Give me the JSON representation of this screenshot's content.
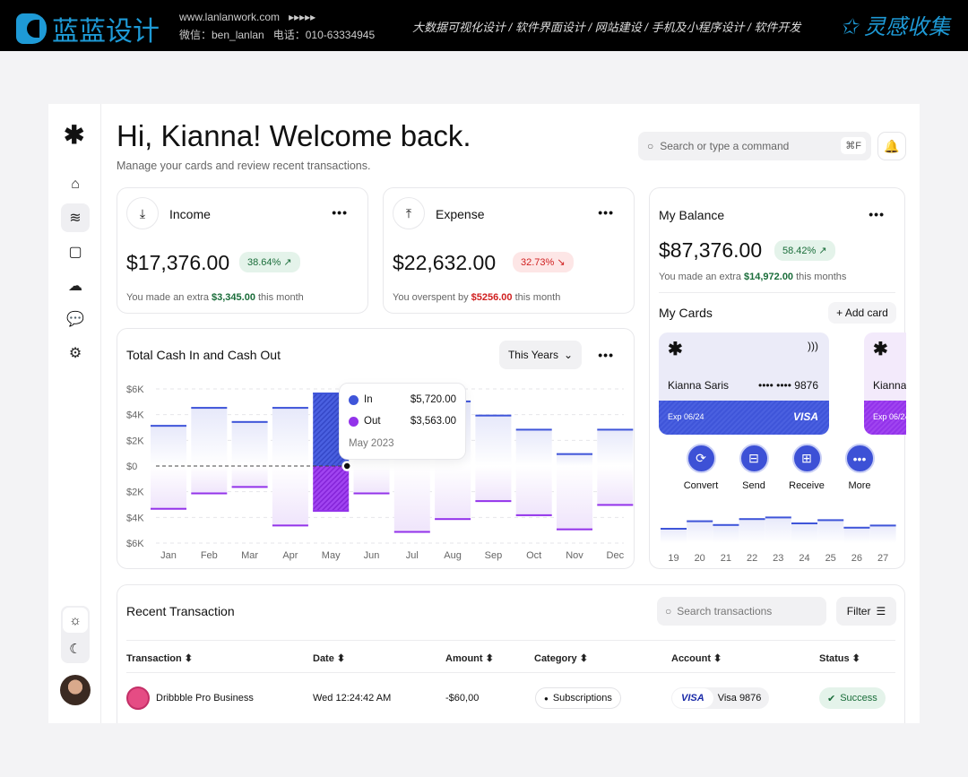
{
  "banner": {
    "brand": "蓝蓝设计",
    "website": "www.lanlanwork.com",
    "arrows": "▸▸▸▸▸",
    "wechat": "微信：ben_lanlan",
    "phone": "电话：010-63334945",
    "services": "大数据可视化设计 / 软件界面设计 / 网站建设 / 手机及小程序设计 / 软件开发",
    "right_brand": "灵感收集"
  },
  "sidebar": {
    "items": [
      {
        "icon": "home-icon"
      },
      {
        "icon": "layers-icon",
        "active": true
      },
      {
        "icon": "folder-icon"
      },
      {
        "icon": "cloud-upload-icon"
      },
      {
        "icon": "chat-icon"
      },
      {
        "icon": "gear-icon"
      }
    ],
    "theme": [
      "sun-icon",
      "moon-icon"
    ]
  },
  "header": {
    "title": "Hi, Kianna! Welcome back.",
    "subtitle": "Manage your cards and review recent transactions.",
    "search_placeholder": "Search or type a command",
    "shortcut": "⌘F"
  },
  "income": {
    "title": "Income",
    "amount": "$17,376.00",
    "change": "38.64% ↗",
    "note_pre": "You made an extra ",
    "note_val": "$3,345.00",
    "note_post": " this month"
  },
  "expense": {
    "title": "Expense",
    "amount": "$22,632.00",
    "change": "32.73% ↘",
    "note_pre": "You overspent by ",
    "note_val": "$5256.00",
    "note_post": " this month"
  },
  "balance": {
    "title": "My Balance",
    "amount": "$87,376.00",
    "change": "58.42% ↗",
    "note_pre": "You made an extra ",
    "note_val": "$14,972.00",
    "note_post": " this months",
    "cards_title": "My Cards",
    "add_card": "+ Add card",
    "card": {
      "name": "Kianna Saris",
      "number": "•••• •••• 9876",
      "exp": "Exp 06/24",
      "brand": "VISA"
    },
    "card2": {
      "name": "Kianna",
      "exp": "Exp 06/24"
    },
    "actions": [
      "Convert",
      "Send",
      "Receive",
      "More"
    ],
    "mini_chart": {
      "days": [
        "19",
        "20",
        "21",
        "22",
        "23",
        "24",
        "25",
        "26",
        "27"
      ],
      "levels": [
        0.3,
        0.58,
        0.44,
        0.66,
        0.72,
        0.5,
        0.62,
        0.34,
        0.42
      ]
    }
  },
  "colors": {
    "in": "#3f55d9",
    "out": "#9333ea",
    "positive": "#1a6d3a",
    "negative": "#d01f1f"
  },
  "chart_data": {
    "type": "bar",
    "title": "Total Cash In and Cash Out",
    "period": "This Years",
    "categories": [
      "Jan",
      "Feb",
      "Mar",
      "Apr",
      "May",
      "Jun",
      "Jul",
      "Aug",
      "Sep",
      "Oct",
      "Nov",
      "Dec"
    ],
    "series": [
      {
        "name": "In",
        "values": [
          3.2,
          4.6,
          3.5,
          4.6,
          5.72,
          5.0,
          5.1,
          5.1,
          4.0,
          2.9,
          1.0,
          2.9
        ]
      },
      {
        "name": "Out",
        "values": [
          -3.4,
          -2.2,
          -1.7,
          -4.7,
          -3.563,
          -2.2,
          -5.2,
          -4.2,
          -2.8,
          -3.9,
          -5.0,
          -3.1
        ]
      }
    ],
    "yticks": [
      "$6K",
      "$4K",
      "$2K",
      "$0",
      "$2K",
      "$4K",
      "$6K"
    ],
    "ylim": [
      -6,
      6
    ],
    "unit": "$K",
    "grid": true,
    "tooltip": {
      "in_label": "In",
      "in_value": "$5,720.00",
      "out_label": "Out",
      "out_value": "$3,563.00",
      "date": "May 2023"
    }
  },
  "transactions": {
    "title": "Recent Transaction",
    "search_placeholder": "Search transactions",
    "filter": "Filter",
    "columns": [
      "Transaction ⬍",
      "Date ⬍",
      "Amount ⬍",
      "Category ⬍",
      "Account ⬍",
      "Status ⬍"
    ],
    "rows": [
      {
        "name": "Dribbble Pro Business",
        "date": "Wed 12:24:42 AM",
        "amount": "-$60,00",
        "category": "Subscriptions",
        "account_brand": "VISA",
        "account": "Visa 9876",
        "status": "Success"
      }
    ]
  }
}
